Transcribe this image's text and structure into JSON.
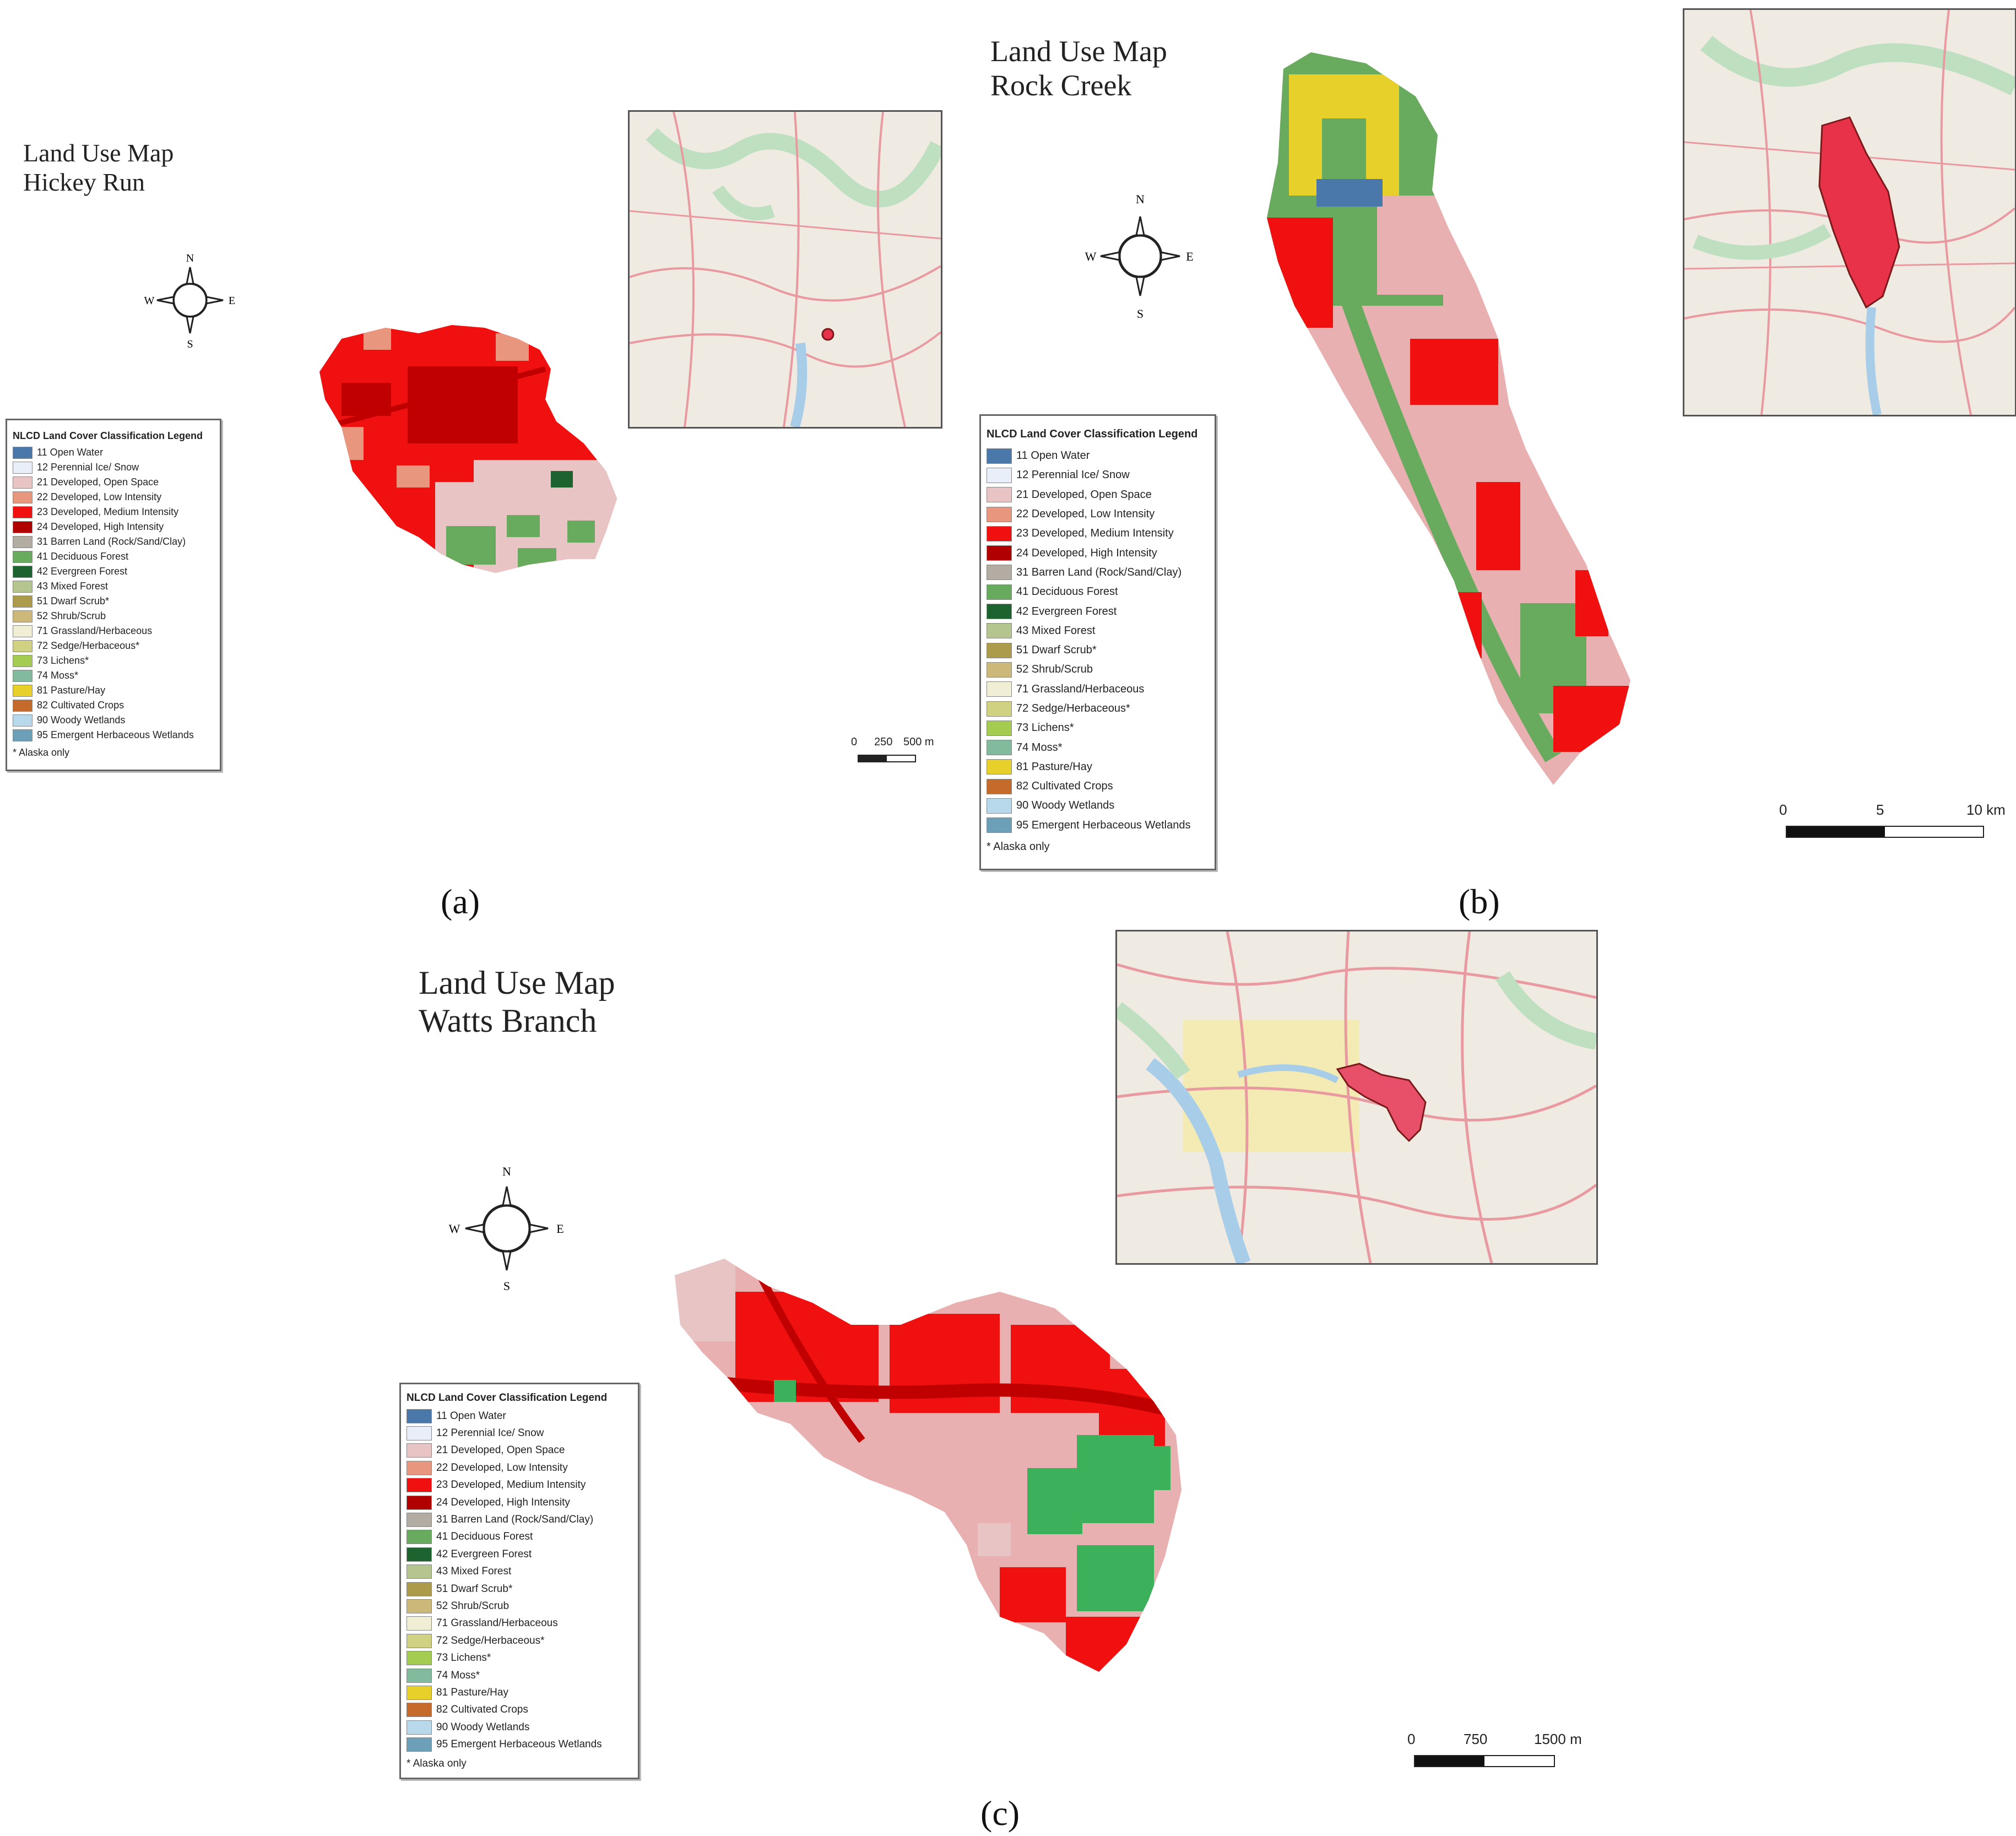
{
  "panels": [
    {
      "id": "a",
      "label": "(a)",
      "title_line1": "Land Use Map",
      "title_line2": "Hickey Run",
      "scale": {
        "zero": "0",
        "mid": "250",
        "end": "500 m"
      }
    },
    {
      "id": "b",
      "label": "(b)",
      "title_line1": "Land Use Map",
      "title_line2": "Rock Creek",
      "scale": {
        "zero": "0",
        "mid": "5",
        "end": "10 km"
      }
    },
    {
      "id": "c",
      "label": "(c)",
      "title_line1": "Land Use Map",
      "title_line2": "Watts Branch",
      "scale": {
        "zero": "0",
        "mid": "750",
        "end": "1500 m"
      }
    }
  ],
  "compass": {
    "n": "N",
    "s": "S",
    "e": "E",
    "w": "W"
  },
  "legend": {
    "title": "NLCD Land Cover Classification Legend",
    "note": "* Alaska only",
    "items": [
      {
        "label": "11 Open Water",
        "color": "#4a78ab"
      },
      {
        "label": "12 Perennial Ice/ Snow",
        "color": "#e8eff8"
      },
      {
        "label": "21 Developed, Open Space",
        "color": "#e8c4c4"
      },
      {
        "label": "22 Developed, Low Intensity",
        "color": "#e8977e"
      },
      {
        "label": "23 Developed, Medium Intensity",
        "color": "#f01010"
      },
      {
        "label": "24 Developed, High Intensity",
        "color": "#b00000"
      },
      {
        "label": "31 Barren Land (Rock/Sand/Clay)",
        "color": "#b3aca3"
      },
      {
        "label": "41 Deciduous Forest",
        "color": "#68ab5f"
      },
      {
        "label": "42 Evergreen Forest",
        "color": "#1c6330"
      },
      {
        "label": "43 Mixed Forest",
        "color": "#b5c58f"
      },
      {
        "label": "51 Dwarf Scrub*",
        "color": "#ac9b4a"
      },
      {
        "label": "52 Shrub/Scrub",
        "color": "#ccb879"
      },
      {
        "label": "71 Grassland/Herbaceous",
        "color": "#f0eed4"
      },
      {
        "label": "72 Sedge/Herbaceous*",
        "color": "#d1d182"
      },
      {
        "label": "73 Lichens*",
        "color": "#a3cc51"
      },
      {
        "label": "74 Moss*",
        "color": "#82ba9e"
      },
      {
        "label": "81 Pasture/Hay",
        "color": "#e8d02a"
      },
      {
        "label": "82 Cultivated Crops",
        "color": "#c46a2a"
      },
      {
        "label": "90 Woody Wetlands",
        "color": "#b8d9eb"
      },
      {
        "label": "95 Emergent Herbaceous Wetlands",
        "color": "#6c9fb8"
      }
    ]
  },
  "colors": {
    "watershed_highlight": "#e8324a",
    "map_base": "#f0ebe2",
    "map_road": "#e89aa0",
    "map_green": "#bfe0c0",
    "map_water": "#a8cde8"
  }
}
